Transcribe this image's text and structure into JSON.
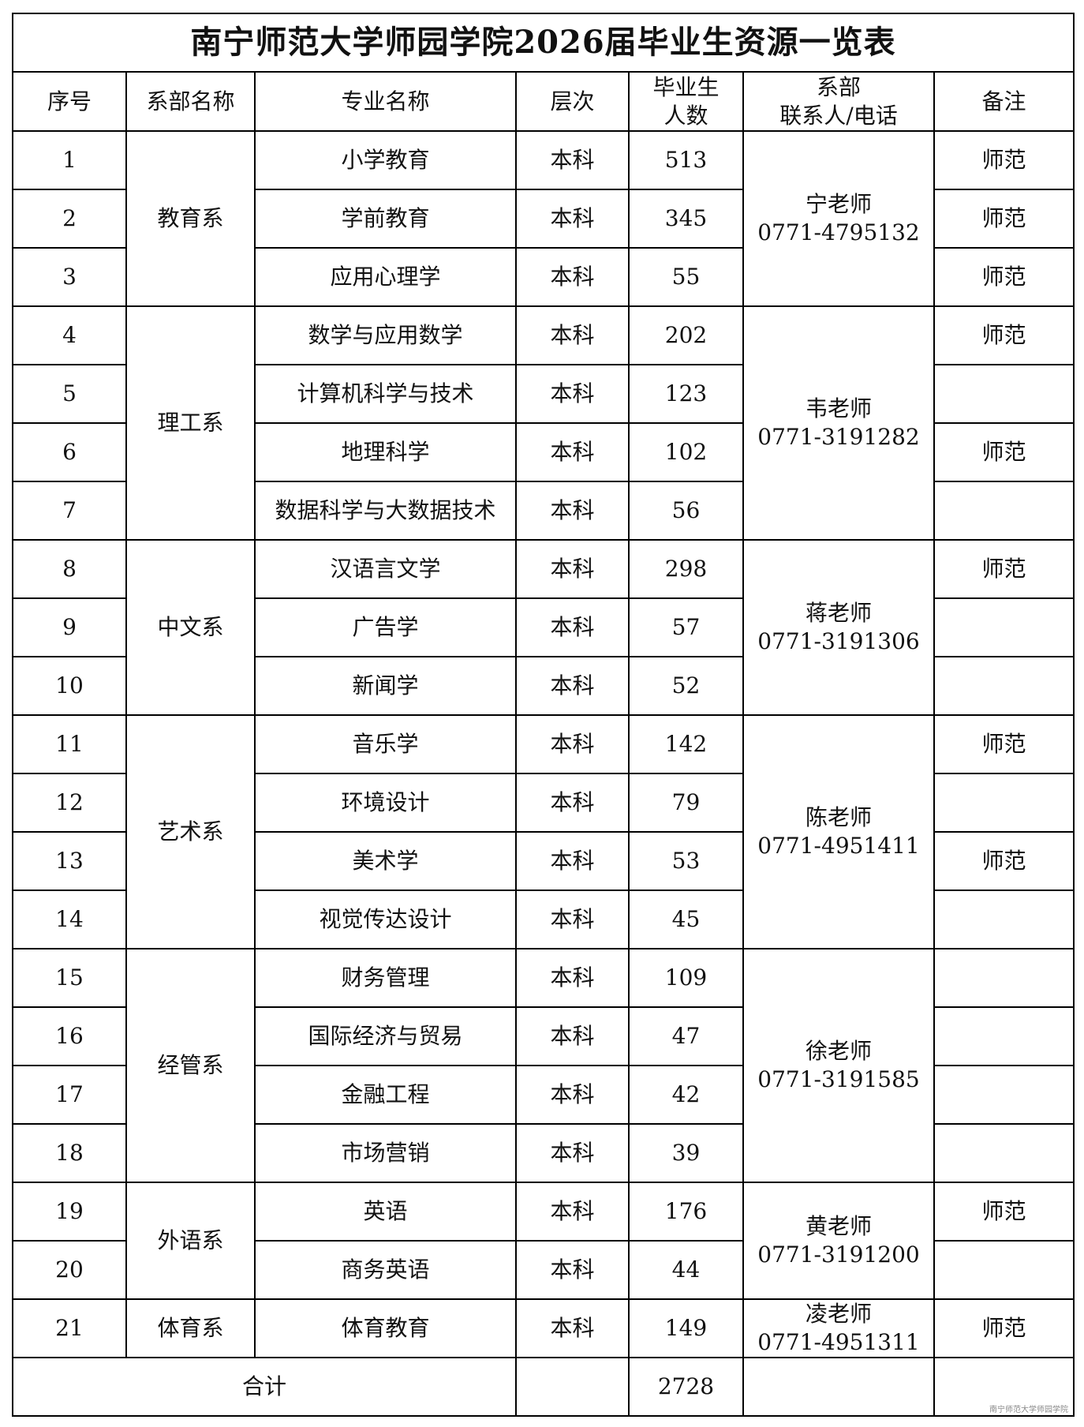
{
  "title": "南宁师范大学师园学院2026届毕业生资源一览表",
  "headers": {
    "index": "序号",
    "department": "系部名称",
    "major": "专业名称",
    "level": "层次",
    "graduates_line1": "毕业生",
    "graduates_line2": "人数",
    "contact_line1": "系部",
    "contact_line2": "联系人/电话",
    "remark": "备注"
  },
  "departments": [
    {
      "name": "教育系",
      "contact": "宁老师",
      "phone": "0771-4795132",
      "majors": [
        {
          "no": "1",
          "major": "小学教育",
          "level": "本科",
          "count": "513",
          "remark": "师范"
        },
        {
          "no": "2",
          "major": "学前教育",
          "level": "本科",
          "count": "345",
          "remark": "师范"
        },
        {
          "no": "3",
          "major": "应用心理学",
          "level": "本科",
          "count": "55",
          "remark": "师范"
        }
      ]
    },
    {
      "name": "理工系",
      "contact": "韦老师",
      "phone": "0771-3191282",
      "majors": [
        {
          "no": "4",
          "major": "数学与应用数学",
          "level": "本科",
          "count": "202",
          "remark": "师范"
        },
        {
          "no": "5",
          "major": "计算机科学与技术",
          "level": "本科",
          "count": "123",
          "remark": ""
        },
        {
          "no": "6",
          "major": "地理科学",
          "level": "本科",
          "count": "102",
          "remark": "师范"
        },
        {
          "no": "7",
          "major": "数据科学与大数据技术",
          "level": "本科",
          "count": "56",
          "remark": ""
        }
      ]
    },
    {
      "name": "中文系",
      "contact": "蒋老师",
      "phone": "0771-3191306",
      "majors": [
        {
          "no": "8",
          "major": "汉语言文学",
          "level": "本科",
          "count": "298",
          "remark": "师范"
        },
        {
          "no": "9",
          "major": "广告学",
          "level": "本科",
          "count": "57",
          "remark": ""
        },
        {
          "no": "10",
          "major": "新闻学",
          "level": "本科",
          "count": "52",
          "remark": ""
        }
      ]
    },
    {
      "name": "艺术系",
      "contact": "陈老师",
      "phone": "0771-4951411",
      "majors": [
        {
          "no": "11",
          "major": "音乐学",
          "level": "本科",
          "count": "142",
          "remark": "师范"
        },
        {
          "no": "12",
          "major": "环境设计",
          "level": "本科",
          "count": "79",
          "remark": ""
        },
        {
          "no": "13",
          "major": "美术学",
          "level": "本科",
          "count": "53",
          "remark": "师范"
        },
        {
          "no": "14",
          "major": "视觉传达设计",
          "level": "本科",
          "count": "45",
          "remark": ""
        }
      ]
    },
    {
      "name": "经管系",
      "contact": "徐老师",
      "phone": "0771-3191585",
      "majors": [
        {
          "no": "15",
          "major": "财务管理",
          "level": "本科",
          "count": "109",
          "remark": ""
        },
        {
          "no": "16",
          "major": "国际经济与贸易",
          "level": "本科",
          "count": "47",
          "remark": ""
        },
        {
          "no": "17",
          "major": "金融工程",
          "level": "本科",
          "count": "42",
          "remark": ""
        },
        {
          "no": "18",
          "major": "市场营销",
          "level": "本科",
          "count": "39",
          "remark": ""
        }
      ]
    },
    {
      "name": "外语系",
      "contact": "黄老师",
      "phone": "0771-3191200",
      "majors": [
        {
          "no": "19",
          "major": "英语",
          "level": "本科",
          "count": "176",
          "remark": "师范"
        },
        {
          "no": "20",
          "major": "商务英语",
          "level": "本科",
          "count": "44",
          "remark": ""
        }
      ]
    },
    {
      "name": "体育系",
      "contact": "凌老师",
      "phone": "0771-4951311",
      "majors": [
        {
          "no": "21",
          "major": "体育教育",
          "level": "本科",
          "count": "149",
          "remark": "师范"
        }
      ]
    }
  ],
  "total": {
    "label": "合计",
    "count": "2728"
  },
  "watermark": "南宁师范大学师园学院"
}
